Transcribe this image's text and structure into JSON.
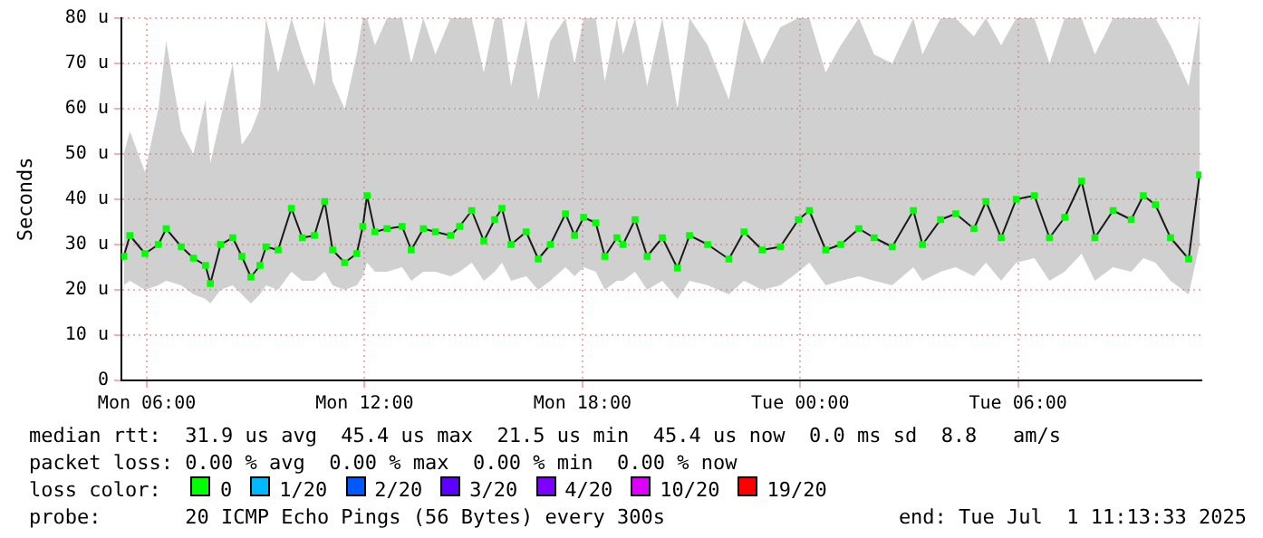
{
  "chart_data": {
    "type": "line",
    "ylabel": "Seconds",
    "legend_title": "loss color:",
    "legend": "bottom",
    "grid": true,
    "marker": "square",
    "xlim": [
      "2025-06-30T05:18",
      "2025-07-01T11:03"
    ],
    "xticks": [
      {
        "value": "2025-06-30T06:00",
        "label": "Mon 06:00"
      },
      {
        "value": "2025-06-30T12:00",
        "label": "Mon 12:00"
      },
      {
        "value": "2025-06-30T18:00",
        "label": "Mon 18:00"
      },
      {
        "value": "2025-07-01T00:00",
        "label": "Tue 00:00"
      },
      {
        "value": "2025-07-01T06:00",
        "label": "Tue 06:00"
      }
    ],
    "ylim": [
      0,
      80
    ],
    "yticks": [
      0,
      {
        "value": 10,
        "label": "10 u"
      },
      {
        "value": 20,
        "label": "20 u"
      },
      {
        "value": 30,
        "label": "30 u"
      },
      {
        "value": 40,
        "label": "40 u"
      },
      {
        "value": 50,
        "label": "50 u"
      },
      {
        "value": 60,
        "label": "60 u"
      },
      {
        "value": 70,
        "label": "70 u"
      },
      {
        "value": 80,
        "label": "80 u"
      }
    ],
    "x": [
      "2025-06-30T05:22",
      "2025-06-30T05:32",
      "2025-06-30T05:57",
      "2025-06-30T06:19",
      "2025-06-30T06:32",
      "2025-06-30T06:57",
      "2025-06-30T07:17",
      "2025-06-30T07:37",
      "2025-06-30T07:45",
      "2025-06-30T08:02",
      "2025-06-30T08:22",
      "2025-06-30T08:37",
      "2025-06-30T08:52",
      "2025-06-30T09:07",
      "2025-06-30T09:17",
      "2025-06-30T09:37",
      "2025-06-30T09:59",
      "2025-06-30T10:17",
      "2025-06-30T10:37",
      "2025-06-30T10:54",
      "2025-06-30T11:07",
      "2025-06-30T11:27",
      "2025-06-30T11:47",
      "2025-06-30T11:57",
      "2025-06-30T12:04",
      "2025-06-30T12:17",
      "2025-06-30T12:37",
      "2025-06-30T13:02",
      "2025-06-30T13:17",
      "2025-06-30T13:37",
      "2025-06-30T13:57",
      "2025-06-30T14:22",
      "2025-06-30T14:37",
      "2025-06-30T14:57",
      "2025-06-30T15:17",
      "2025-06-30T15:35",
      "2025-06-30T15:47",
      "2025-06-30T16:02",
      "2025-06-30T16:27",
      "2025-06-30T16:47",
      "2025-06-30T17:07",
      "2025-06-30T17:32",
      "2025-06-30T17:47",
      "2025-06-30T18:02",
      "2025-06-30T18:22",
      "2025-06-30T18:37",
      "2025-06-30T18:57",
      "2025-06-30T19:07",
      "2025-06-30T19:27",
      "2025-06-30T19:47",
      "2025-06-30T20:12",
      "2025-06-30T20:37",
      "2025-06-30T20:57",
      "2025-06-30T21:27",
      "2025-06-30T22:02",
      "2025-06-30T22:27",
      "2025-06-30T22:57",
      "2025-06-30T23:27",
      "2025-06-30T23:57",
      "2025-07-01T00:15",
      "2025-07-01T00:42",
      "2025-07-01T01:07",
      "2025-07-01T01:37",
      "2025-07-01T02:02",
      "2025-07-01T02:32",
      "2025-07-01T03:07",
      "2025-07-01T03:22",
      "2025-07-01T03:52",
      "2025-07-01T04:17",
      "2025-07-01T04:47",
      "2025-07-01T05:07",
      "2025-07-01T05:32",
      "2025-07-01T05:57",
      "2025-07-01T06:27",
      "2025-07-01T06:52",
      "2025-07-01T07:17",
      "2025-07-01T07:45",
      "2025-07-01T08:07",
      "2025-07-01T08:37",
      "2025-07-01T09:07",
      "2025-07-01T09:27",
      "2025-07-01T09:47",
      "2025-07-01T10:12",
      "2025-07-01T10:42",
      "2025-07-01T11:00"
    ],
    "series": [
      {
        "name": "0",
        "color": "#00ff00",
        "values": [
          27.4,
          32,
          28,
          30,
          33.5,
          29.5,
          27,
          25.4,
          21.4,
          30,
          31.5,
          27.4,
          22.8,
          25.4,
          29.5,
          28.8,
          38,
          31.5,
          32,
          39.5,
          28.8,
          26,
          28,
          34,
          40.8,
          32.8,
          33.5,
          34,
          28.8,
          33.5,
          32.8,
          32,
          34,
          37.5,
          30.8,
          35.5,
          38,
          30,
          32.8,
          26.8,
          30,
          36.8,
          32,
          36,
          34.8,
          27.4,
          31.5,
          30,
          35.5,
          27.4,
          31.5,
          24.8,
          32,
          30,
          26.8,
          32.8,
          28.8,
          29.5,
          35.5,
          37.5,
          28.8,
          30,
          33.5,
          31.5,
          29.5,
          37.5,
          30,
          35.5,
          36.8,
          33.5,
          39.5,
          31.5,
          40,
          40.8,
          31.5,
          36,
          44,
          31.5,
          37.5,
          35.5,
          40.8,
          38.8,
          31.5,
          26.8,
          45.4
        ],
        "lower": [
          21,
          22,
          20,
          21,
          22,
          21,
          19,
          18,
          17,
          20,
          21,
          19,
          17,
          19,
          21,
          20,
          24,
          22,
          22,
          24,
          21,
          20,
          21,
          23,
          26,
          24,
          24,
          25,
          22,
          24,
          24,
          23,
          24,
          26,
          22,
          24,
          26,
          22,
          23,
          20,
          22,
          25,
          23,
          25,
          24,
          20,
          22,
          22,
          24,
          20,
          22,
          18,
          22,
          21,
          19,
          22,
          20,
          21,
          24,
          26,
          21,
          22,
          23,
          22,
          21,
          25,
          22,
          24,
          25,
          23,
          26,
          22,
          26,
          27,
          22,
          24,
          28,
          22,
          25,
          24,
          27,
          26,
          22,
          19,
          30
        ],
        "upper": [
          50,
          55,
          46,
          60,
          75,
          55,
          50,
          62,
          48,
          58,
          70,
          52,
          55,
          60,
          80,
          68,
          80,
          72,
          65,
          80,
          66,
          60,
          72,
          80,
          80,
          74,
          80,
          80,
          70,
          80,
          72,
          80,
          80,
          80,
          68,
          80,
          80,
          65,
          80,
          62,
          75,
          80,
          70,
          80,
          80,
          66,
          80,
          72,
          80,
          65,
          80,
          60,
          80,
          74,
          62,
          80,
          70,
          78,
          80,
          80,
          68,
          74,
          80,
          72,
          70,
          80,
          72,
          80,
          80,
          76,
          80,
          74,
          80,
          80,
          70,
          80,
          80,
          72,
          80,
          80,
          80,
          80,
          74,
          65,
          80
        ]
      },
      {
        "name": "1/20",
        "color": "#00b8ff",
        "values": [
          null,
          null,
          null,
          null,
          null,
          null,
          null,
          null,
          null,
          null,
          null,
          null,
          null,
          null,
          null,
          null,
          null,
          null,
          null,
          null,
          null,
          null,
          null,
          null,
          null,
          null,
          null,
          null,
          null,
          null,
          null,
          null,
          null,
          null,
          null,
          null,
          null,
          null,
          null,
          null,
          null,
          null,
          null,
          null,
          null,
          null,
          null,
          null,
          null,
          null,
          null,
          null,
          null,
          null,
          null,
          null,
          null,
          null,
          null,
          null,
          null,
          null,
          null,
          null,
          null,
          null,
          null,
          null,
          null,
          null,
          null,
          null,
          null,
          null,
          null,
          null,
          null,
          null,
          null,
          null,
          null,
          null,
          null,
          null,
          null
        ]
      },
      {
        "name": "2/20",
        "color": "#0059ff",
        "values": [
          null,
          null,
          null,
          null,
          null,
          null,
          null,
          null,
          null,
          null,
          null,
          null,
          null,
          null,
          null,
          null,
          null,
          null,
          null,
          null,
          null,
          null,
          null,
          null,
          null,
          null,
          null,
          null,
          null,
          null,
          null,
          null,
          null,
          null,
          null,
          null,
          null,
          null,
          null,
          null,
          null,
          null,
          null,
          null,
          null,
          null,
          null,
          null,
          null,
          null,
          null,
          null,
          null,
          null,
          null,
          null,
          null,
          null,
          null,
          null,
          null,
          null,
          null,
          null,
          null,
          null,
          null,
          null,
          null,
          null,
          null,
          null,
          null,
          null,
          null,
          null,
          null,
          null,
          null,
          null,
          null,
          null,
          null,
          null,
          null
        ]
      },
      {
        "name": "3/20",
        "color": "#5e00ff",
        "values": [
          null,
          null,
          null,
          null,
          null,
          null,
          null,
          null,
          null,
          null,
          null,
          null,
          null,
          null,
          null,
          null,
          null,
          null,
          null,
          null,
          null,
          null,
          null,
          null,
          null,
          null,
          null,
          null,
          null,
          null,
          null,
          null,
          null,
          null,
          null,
          null,
          null,
          null,
          null,
          null,
          null,
          null,
          null,
          null,
          null,
          null,
          null,
          null,
          null,
          null,
          null,
          null,
          null,
          null,
          null,
          null,
          null,
          null,
          null,
          null,
          null,
          null,
          null,
          null,
          null,
          null,
          null,
          null,
          null,
          null,
          null,
          null,
          null,
          null,
          null,
          null,
          null,
          null,
          null,
          null,
          null,
          null,
          null,
          null,
          null
        ]
      },
      {
        "name": "4/20",
        "color": "#7e00ff",
        "values": [
          null,
          null,
          null,
          null,
          null,
          null,
          null,
          null,
          null,
          null,
          null,
          null,
          null,
          null,
          null,
          null,
          null,
          null,
          null,
          null,
          null,
          null,
          null,
          null,
          null,
          null,
          null,
          null,
          null,
          null,
          null,
          null,
          null,
          null,
          null,
          null,
          null,
          null,
          null,
          null,
          null,
          null,
          null,
          null,
          null,
          null,
          null,
          null,
          null,
          null,
          null,
          null,
          null,
          null,
          null,
          null,
          null,
          null,
          null,
          null,
          null,
          null,
          null,
          null,
          null,
          null,
          null,
          null,
          null,
          null,
          null,
          null,
          null,
          null,
          null,
          null,
          null,
          null,
          null,
          null,
          null,
          null,
          null,
          null,
          null
        ]
      },
      {
        "name": "10/20",
        "color": "#dd00ff",
        "values": [
          null,
          null,
          null,
          null,
          null,
          null,
          null,
          null,
          null,
          null,
          null,
          null,
          null,
          null,
          null,
          null,
          null,
          null,
          null,
          null,
          null,
          null,
          null,
          null,
          null,
          null,
          null,
          null,
          null,
          null,
          null,
          null,
          null,
          null,
          null,
          null,
          null,
          null,
          null,
          null,
          null,
          null,
          null,
          null,
          null,
          null,
          null,
          null,
          null,
          null,
          null,
          null,
          null,
          null,
          null,
          null,
          null,
          null,
          null,
          null,
          null,
          null,
          null,
          null,
          null,
          null,
          null,
          null,
          null,
          null,
          null,
          null,
          null,
          null,
          null,
          null,
          null,
          null,
          null,
          null,
          null,
          null,
          null,
          null,
          null
        ]
      },
      {
        "name": "19/20",
        "color": "#ff0000",
        "values": [
          null,
          null,
          null,
          null,
          null,
          null,
          null,
          null,
          null,
          null,
          null,
          null,
          null,
          null,
          null,
          null,
          null,
          null,
          null,
          null,
          null,
          null,
          null,
          null,
          null,
          null,
          null,
          null,
          null,
          null,
          null,
          null,
          null,
          null,
          null,
          null,
          null,
          null,
          null,
          null,
          null,
          null,
          null,
          null,
          null,
          null,
          null,
          null,
          null,
          null,
          null,
          null,
          null,
          null,
          null,
          null,
          null,
          null,
          null,
          null,
          null,
          null,
          null,
          null,
          null,
          null,
          null,
          null,
          null,
          null,
          null,
          null,
          null,
          null,
          null,
          null,
          null,
          null,
          null,
          null,
          null,
          null,
          null,
          null,
          null
        ]
      }
    ],
    "annotations": [
      "median rtt:  31.9 us avg  45.4 us max  21.5 us min  45.4 us now  0.0 ms sd  8.8   am/s",
      "packet loss: 0.00 % avg  0.00 % max  0.00 % min  0.00 % now",
      "probe:       20 ICMP Echo Pings (56 Bytes) every 300s",
      "end: Tue Jul  1 11:13:33 2025"
    ]
  }
}
